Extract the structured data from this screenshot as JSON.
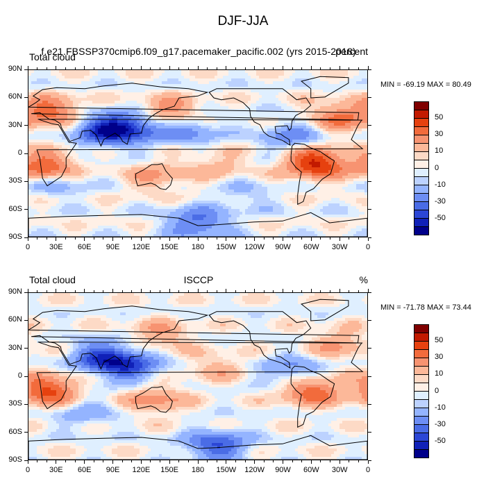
{
  "page": {
    "title": "DJF-JJA"
  },
  "scale": {
    "levels": [
      -60,
      -50,
      -40,
      -30,
      -20,
      -10,
      -5,
      0,
      5,
      10,
      20,
      30,
      40,
      50,
      60
    ],
    "labels": [
      "50",
      "30",
      "10",
      "0",
      "-10",
      "-30",
      "-50"
    ],
    "colors": [
      "#800000",
      "#c21a00",
      "#e6410f",
      "#f26b3c",
      "#f79371",
      "#fcb899",
      "#fddac6",
      "#fff0e6",
      "#dfefff",
      "#bcd2ff",
      "#94b4ff",
      "#6d8ef4",
      "#4a6ce6",
      "#2b46d6",
      "#1021b8",
      "#00008a"
    ]
  },
  "axes": {
    "lon_labels": [
      "0",
      "30E",
      "60E",
      "90E",
      "120E",
      "150E",
      "180",
      "150W",
      "120W",
      "90W",
      "60W",
      "30W",
      "0"
    ],
    "lat_labels": [
      "90N",
      "60N",
      "30N",
      "0",
      "30S",
      "60S",
      "90S"
    ]
  },
  "panels": [
    {
      "left_label": "Total cloud",
      "center_label": "f.e21.FBSSP370cmip6.f09_g17.pacemaker_pacific.002 (yrs 2015-2018)",
      "right_label": "percent",
      "min_max": "MIN = -69.19 MAX = 80.49"
    },
    {
      "left_label": "Total cloud",
      "center_label": "ISCCP",
      "right_label": "%",
      "min_max": "MIN = -71.78 MAX = 73.44"
    }
  ],
  "chart_data": [
    {
      "type": "heatmap",
      "title": "DJF-JJA",
      "variable": "Total cloud",
      "source": "f.e21.FBSSP370cmip6.f09_g17.pacemaker_pacific.002 (yrs 2015-2018)",
      "units": "percent",
      "min": -69.19,
      "max": 80.49,
      "xlim": [
        0,
        360
      ],
      "ylim": [
        -90,
        90
      ],
      "contour_levels": [
        -60,
        -50,
        -40,
        -30,
        -20,
        -10,
        -5,
        0,
        5,
        10,
        20,
        30,
        40,
        50,
        60
      ],
      "features": [
        {
          "lon": 20,
          "lat": -15,
          "value": 45
        },
        {
          "lon": 305,
          "lat": -10,
          "value": 55
        },
        {
          "lon": 25,
          "lat": 45,
          "value": 35
        },
        {
          "lon": 150,
          "lat": 45,
          "value": 30
        },
        {
          "lon": 330,
          "lat": 40,
          "value": 30
        },
        {
          "lon": 135,
          "lat": -25,
          "value": 20
        },
        {
          "lon": 200,
          "lat": -12,
          "value": 15
        },
        {
          "lon": 80,
          "lat": 25,
          "value": -45
        },
        {
          "lon": 110,
          "lat": 28,
          "value": -40
        },
        {
          "lon": 170,
          "lat": 25,
          "value": -25
        },
        {
          "lon": 280,
          "lat": 18,
          "value": -25
        },
        {
          "lon": 230,
          "lat": -45,
          "value": -10
        },
        {
          "lon": 30,
          "lat": -30,
          "value": -20
        },
        {
          "lon": 180,
          "lat": -75,
          "value": -35
        }
      ]
    },
    {
      "type": "heatmap",
      "title": "DJF-JJA",
      "variable": "Total cloud",
      "source": "ISCCP",
      "units": "%",
      "min": -71.78,
      "max": 73.44,
      "xlim": [
        0,
        360
      ],
      "ylim": [
        -90,
        90
      ],
      "contour_levels": [
        -60,
        -50,
        -40,
        -30,
        -20,
        -10,
        -5,
        0,
        5,
        10,
        20,
        30,
        40,
        50,
        60
      ],
      "features": [
        {
          "lon": 20,
          "lat": -15,
          "value": 45
        },
        {
          "lon": 300,
          "lat": -15,
          "value": 40
        },
        {
          "lon": 135,
          "lat": -25,
          "value": 25
        },
        {
          "lon": 140,
          "lat": 45,
          "value": 20
        },
        {
          "lon": 330,
          "lat": 35,
          "value": 20
        },
        {
          "lon": 200,
          "lat": 10,
          "value": 15
        },
        {
          "lon": 80,
          "lat": 20,
          "value": -45
        },
        {
          "lon": 110,
          "lat": 10,
          "value": -35
        },
        {
          "lon": 280,
          "lat": 5,
          "value": -25
        },
        {
          "lon": 60,
          "lat": -40,
          "value": -15
        },
        {
          "lon": 200,
          "lat": -75,
          "value": -40
        }
      ]
    }
  ]
}
